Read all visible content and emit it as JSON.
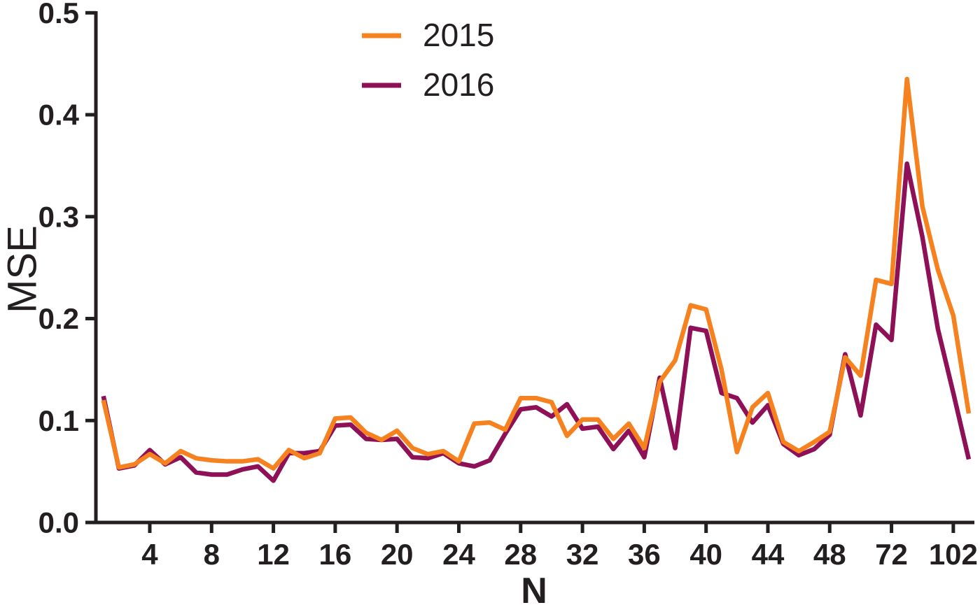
{
  "colors": {
    "axis": "#231F20",
    "background": "#FFFFFF",
    "series_2015": "#F5821F",
    "series_2016": "#8E1056"
  },
  "chart_data": {
    "type": "line",
    "title": "",
    "xlabel": "N",
    "ylabel": "MSE",
    "ylim": [
      0.0,
      0.5
    ],
    "grid": false,
    "y_ticks": [
      0.0,
      0.1,
      0.2,
      0.3,
      0.4,
      0.5
    ],
    "y_tick_labels": [
      "0.0",
      "0.1",
      "0.2",
      "0.3",
      "0.4",
      "0.5"
    ],
    "x_axis_note": "57 equally spaced points; ticks every 4th point, labels jump to 72 and 102 after 48",
    "x_ticks": [
      {
        "index": 4,
        "label": "4"
      },
      {
        "index": 8,
        "label": "8"
      },
      {
        "index": 12,
        "label": "12"
      },
      {
        "index": 16,
        "label": "16"
      },
      {
        "index": 20,
        "label": "20"
      },
      {
        "index": 24,
        "label": "24"
      },
      {
        "index": 28,
        "label": "28"
      },
      {
        "index": 32,
        "label": "32"
      },
      {
        "index": 36,
        "label": "36"
      },
      {
        "index": 40,
        "label": "40"
      },
      {
        "index": 44,
        "label": "44"
      },
      {
        "index": 48,
        "label": "48"
      },
      {
        "index": 52,
        "label": "72"
      },
      {
        "index": 56,
        "label": "102"
      }
    ],
    "legend": {
      "position": "top-center",
      "entries": [
        {
          "label": "2015",
          "color": "#F5821F"
        },
        {
          "label": "2016",
          "color": "#8E1056"
        }
      ]
    },
    "series": [
      {
        "name": "2015",
        "color": "#F5821F",
        "values": [
          0.12,
          0.054,
          0.057,
          0.067,
          0.058,
          0.07,
          0.063,
          0.061,
          0.06,
          0.06,
          0.062,
          0.053,
          0.071,
          0.063,
          0.068,
          0.102,
          0.103,
          0.088,
          0.081,
          0.09,
          0.073,
          0.067,
          0.07,
          0.06,
          0.097,
          0.098,
          0.091,
          0.122,
          0.122,
          0.118,
          0.085,
          0.101,
          0.101,
          0.082,
          0.097,
          0.073,
          0.138,
          0.159,
          0.213,
          0.209,
          0.15,
          0.069,
          0.113,
          0.127,
          0.079,
          0.07,
          0.079,
          0.089,
          0.162,
          0.144,
          0.238,
          0.234,
          0.435,
          0.31,
          0.248,
          0.203,
          0.107
        ]
      },
      {
        "name": "2016",
        "color": "#8E1056",
        "values": [
          0.124,
          0.053,
          0.056,
          0.071,
          0.057,
          0.064,
          0.049,
          0.047,
          0.047,
          0.052,
          0.055,
          0.041,
          0.068,
          0.068,
          0.07,
          0.095,
          0.096,
          0.082,
          0.081,
          0.082,
          0.064,
          0.063,
          0.068,
          0.058,
          0.055,
          0.061,
          0.087,
          0.111,
          0.113,
          0.104,
          0.116,
          0.092,
          0.094,
          0.072,
          0.09,
          0.064,
          0.142,
          0.073,
          0.191,
          0.188,
          0.127,
          0.122,
          0.098,
          0.115,
          0.077,
          0.066,
          0.072,
          0.086,
          0.165,
          0.105,
          0.194,
          0.179,
          0.352,
          0.28,
          0.19,
          0.127,
          0.062
        ]
      }
    ]
  }
}
